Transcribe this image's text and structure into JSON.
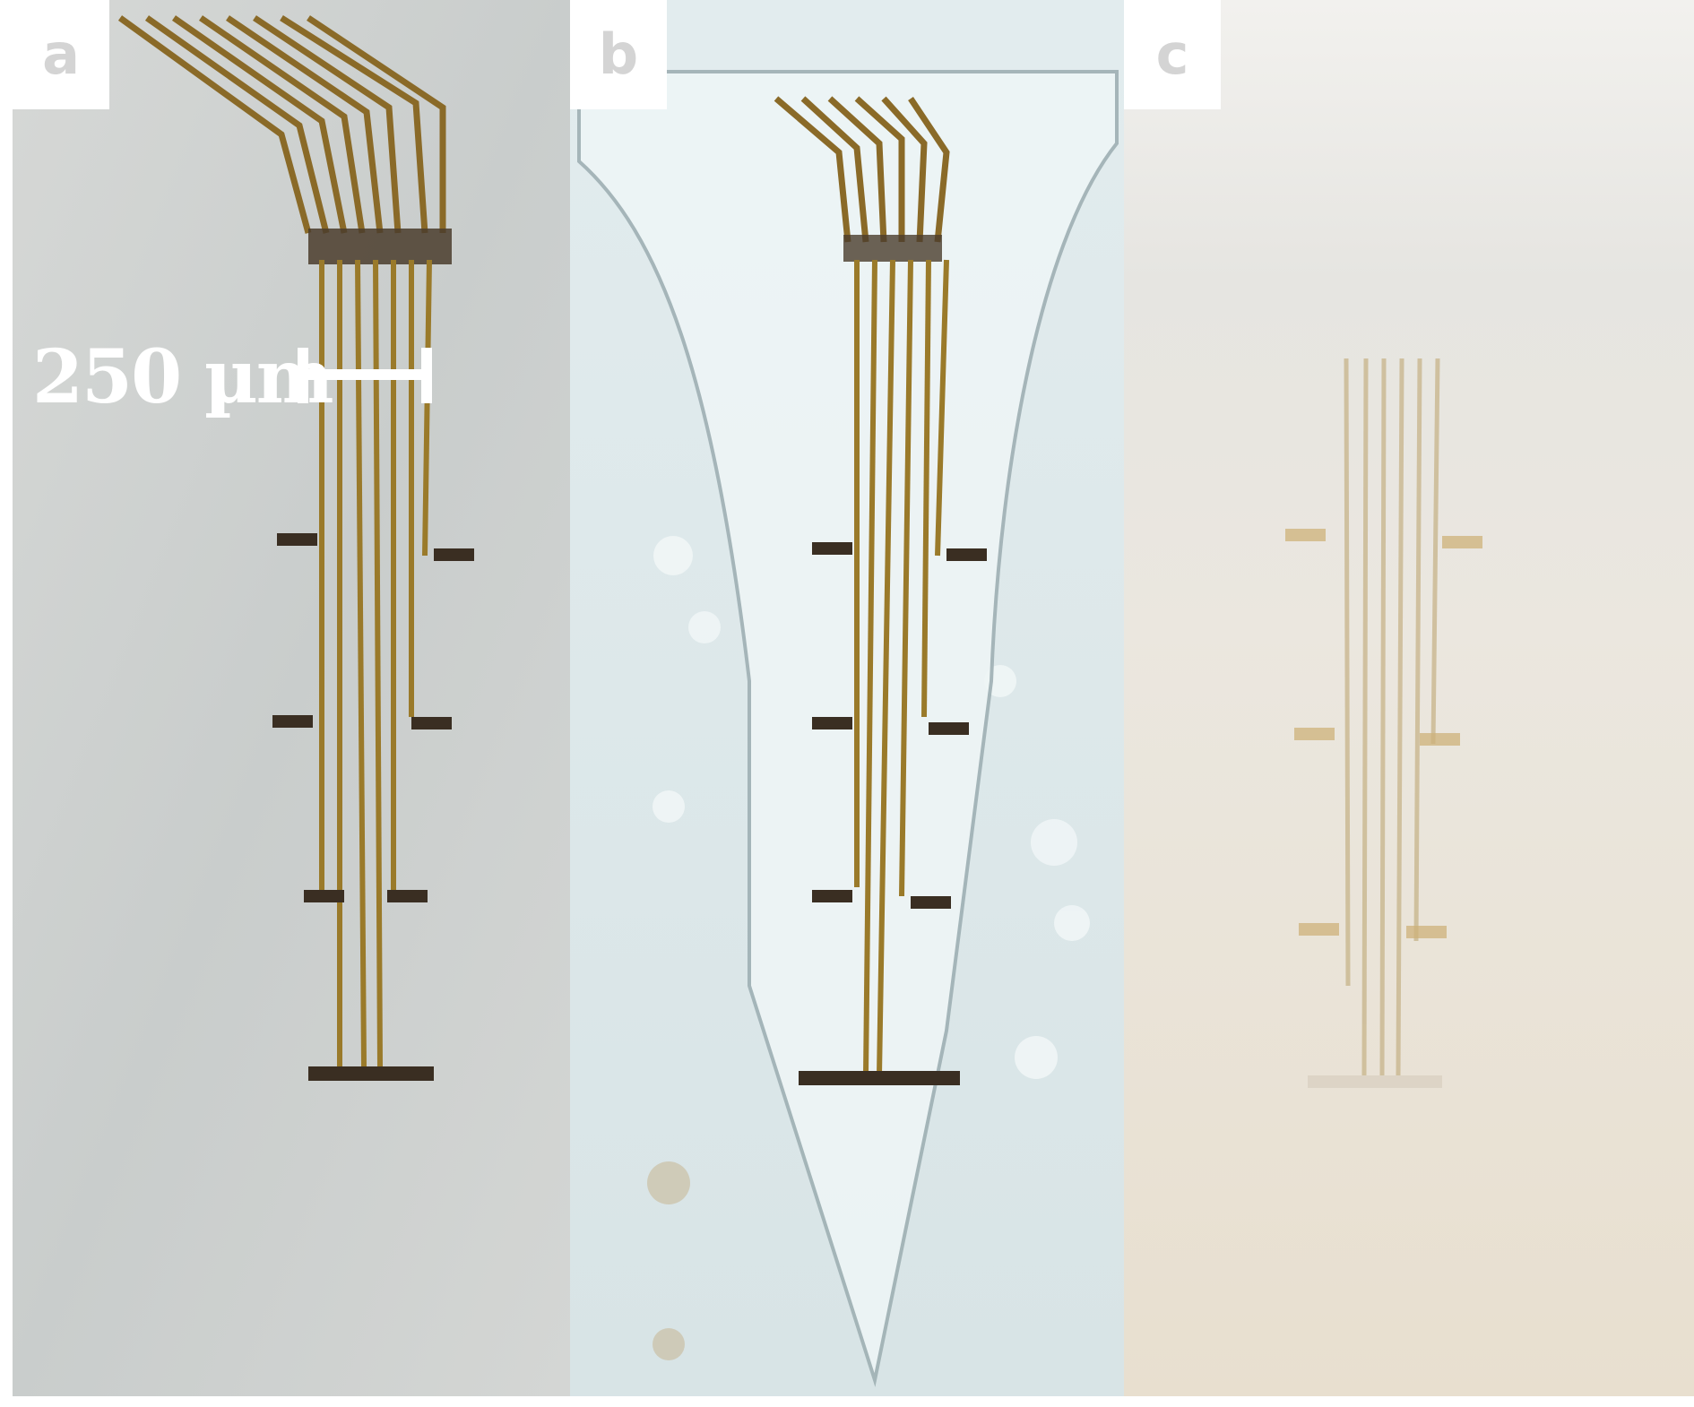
{
  "panels": [
    {
      "label": "a"
    },
    {
      "label": "b"
    },
    {
      "label": "c"
    }
  ],
  "scale_bar": {
    "label": "250 µm"
  },
  "colors": {
    "trace": "#9a7a2a",
    "pad": "#3a2e22",
    "background_a": "#cfd2d0",
    "background_b": "#dce8ea",
    "background_c": "#ece6dc"
  }
}
